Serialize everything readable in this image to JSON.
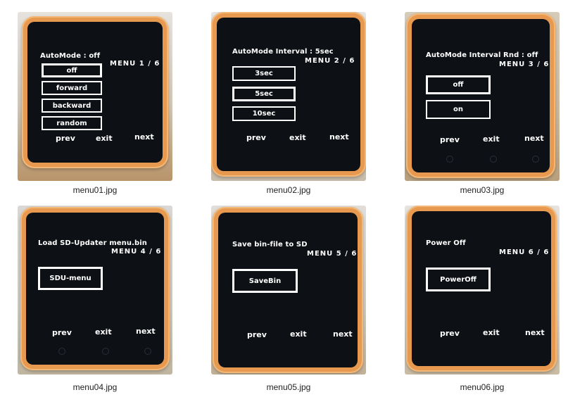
{
  "captions": [
    "menu01.jpg",
    "menu02.jpg",
    "menu03.jpg",
    "menu04.jpg",
    "menu05.jpg",
    "menu06.jpg"
  ],
  "nav": {
    "prev": "prev",
    "exit": "exit",
    "next": "next"
  },
  "menus": [
    {
      "title": "AutoMode : off",
      "counter": "MENU  1 / 6",
      "options": [
        "off",
        "forward",
        "backward",
        "random"
      ],
      "selected": "off"
    },
    {
      "title": "AutoMode Interval : 5sec",
      "counter": "MENU  2 / 6",
      "options": [
        "3sec",
        "5sec",
        "10sec"
      ],
      "selected": "5sec"
    },
    {
      "title": "AutoMode Interval Rnd : off",
      "counter": "MENU  3 / 6",
      "options": [
        "off",
        "on"
      ],
      "selected": "off"
    },
    {
      "title": "Load SD-Updater menu.bin",
      "counter": "MENU  4 / 6",
      "options": [
        "SDU-menu"
      ],
      "selected": "SDU-menu"
    },
    {
      "title": "Save bin-file to SD",
      "counter": "MENU  5 / 6",
      "options": [
        "SaveBin"
      ],
      "selected": "SaveBin"
    },
    {
      "title": "Power Off",
      "counter": "MENU  6 / 6",
      "options": [
        "PowerOff"
      ],
      "selected": "PowerOff"
    }
  ],
  "colors": {
    "device_body": "#e79a4f",
    "screen_bg": "#0d1014",
    "screen_text": "#ffffff"
  }
}
